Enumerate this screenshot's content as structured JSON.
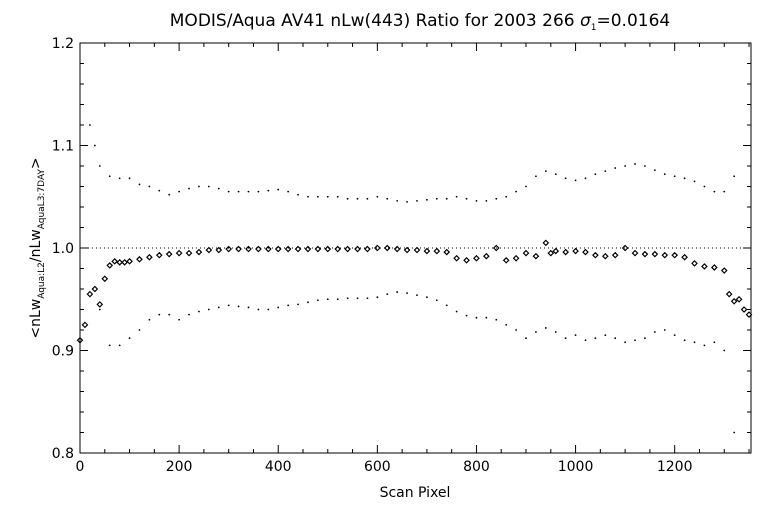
{
  "chart_data": {
    "type": "scatter",
    "title": "MODIS/Aqua AV41 nLw(443) Ratio for 2003 266 σ1=0.0164",
    "title_parts": {
      "main": "MODIS/Aqua AV41 nLw(443) Ratio for 2003 266 ",
      "sigma": "σ",
      "sigma_sub": "1",
      "value": "=0.0164"
    },
    "xlabel": "Scan Pixel",
    "ylabel_parts": {
      "open": "<nLw",
      "sub1": "Aqua:L2",
      "mid": "/nLw",
      "sub2": "AquaL3:7DAY",
      "close": ">"
    },
    "xlim": [
      0,
      1354
    ],
    "ylim": [
      0.8,
      1.2
    ],
    "xticks": [
      0,
      200,
      400,
      600,
      800,
      1000,
      1200
    ],
    "xtick_labels": [
      "0",
      "200",
      "400",
      "600",
      "800",
      "1000",
      "1200"
    ],
    "yticks": [
      0.8,
      0.9,
      1.0,
      1.1,
      1.2
    ],
    "ytick_labels": [
      "0.8",
      "0.9",
      "1.0",
      "1.1",
      "1.2"
    ],
    "reference_line": 1.0,
    "grid": false,
    "colors": {
      "marks": "#000000",
      "background": "#ffffff"
    },
    "series": [
      {
        "marker": "diamond",
        "x": [
          0,
          10,
          20,
          30,
          40,
          50,
          60,
          70,
          80,
          90,
          100,
          120,
          140,
          160,
          180,
          200,
          220,
          240,
          260,
          280,
          300,
          320,
          340,
          360,
          380,
          400,
          420,
          440,
          460,
          480,
          500,
          520,
          540,
          560,
          580,
          600,
          620,
          640,
          660,
          680,
          700,
          720,
          740,
          760,
          780,
          800,
          820,
          840,
          860,
          880,
          900,
          920,
          940,
          950,
          960,
          980,
          1000,
          1020,
          1040,
          1060,
          1080,
          1100,
          1120,
          1140,
          1160,
          1180,
          1200,
          1220,
          1240,
          1260,
          1280,
          1300,
          1310,
          1320,
          1330,
          1340,
          1350
        ],
        "y": [
          0.91,
          0.925,
          0.955,
          0.96,
          0.945,
          0.97,
          0.983,
          0.987,
          0.986,
          0.986,
          0.987,
          0.989,
          0.991,
          0.993,
          0.994,
          0.995,
          0.995,
          0.996,
          0.998,
          0.998,
          0.999,
          0.999,
          0.999,
          0.999,
          0.999,
          0.999,
          0.999,
          0.999,
          0.999,
          0.999,
          0.999,
          0.999,
          0.999,
          0.999,
          0.999,
          1.0,
          1.0,
          0.999,
          0.998,
          0.998,
          0.997,
          0.997,
          0.996,
          0.99,
          0.988,
          0.99,
          0.992,
          1.0,
          0.988,
          0.99,
          0.995,
          0.992,
          1.005,
          0.995,
          0.997,
          0.996,
          0.997,
          0.996,
          0.993,
          0.992,
          0.993,
          1.0,
          0.995,
          0.994,
          0.994,
          0.993,
          0.993,
          0.991,
          0.985,
          0.982,
          0.981,
          0.978,
          0.955,
          0.948,
          0.95,
          0.94,
          0.935
        ]
      },
      {
        "marker": "dot",
        "x": [
          20,
          30,
          40,
          60,
          80,
          100,
          120,
          140,
          160,
          180,
          200,
          220,
          240,
          260,
          280,
          300,
          320,
          340,
          360,
          380,
          400,
          420,
          440,
          460,
          480,
          500,
          520,
          540,
          560,
          580,
          600,
          620,
          640,
          660,
          680,
          700,
          720,
          740,
          760,
          780,
          800,
          820,
          840,
          860,
          880,
          900,
          920,
          940,
          960,
          980,
          1000,
          1020,
          1040,
          1060,
          1080,
          1100,
          1120,
          1140,
          1160,
          1180,
          1200,
          1220,
          1240,
          1260,
          1280,
          1300,
          1320
        ],
        "y": [
          1.12,
          1.1,
          1.08,
          1.07,
          1.068,
          1.068,
          1.062,
          1.06,
          1.056,
          1.052,
          1.055,
          1.058,
          1.06,
          1.06,
          1.058,
          1.055,
          1.055,
          1.055,
          1.055,
          1.056,
          1.057,
          1.055,
          1.052,
          1.05,
          1.05,
          1.05,
          1.05,
          1.048,
          1.048,
          1.048,
          1.05,
          1.048,
          1.046,
          1.045,
          1.046,
          1.047,
          1.048,
          1.048,
          1.05,
          1.048,
          1.046,
          1.046,
          1.048,
          1.05,
          1.055,
          1.06,
          1.07,
          1.075,
          1.072,
          1.068,
          1.066,
          1.068,
          1.072,
          1.075,
          1.078,
          1.08,
          1.082,
          1.08,
          1.076,
          1.072,
          1.07,
          1.068,
          1.065,
          1.06,
          1.055,
          1.055,
          1.07
        ]
      },
      {
        "marker": "dot",
        "x": [
          40,
          60,
          80,
          100,
          120,
          140,
          160,
          180,
          200,
          220,
          240,
          260,
          280,
          300,
          320,
          340,
          360,
          380,
          400,
          420,
          440,
          460,
          480,
          500,
          520,
          540,
          560,
          580,
          600,
          620,
          640,
          660,
          680,
          700,
          720,
          740,
          760,
          780,
          800,
          820,
          840,
          860,
          880,
          900,
          920,
          940,
          960,
          980,
          1000,
          1020,
          1040,
          1060,
          1080,
          1100,
          1120,
          1140,
          1160,
          1180,
          1200,
          1220,
          1240,
          1260,
          1280,
          1300,
          1320
        ],
        "y": [
          0.94,
          0.905,
          0.905,
          0.912,
          0.92,
          0.93,
          0.935,
          0.935,
          0.93,
          0.935,
          0.938,
          0.94,
          0.942,
          0.944,
          0.943,
          0.942,
          0.94,
          0.94,
          0.942,
          0.944,
          0.945,
          0.947,
          0.949,
          0.95,
          0.95,
          0.951,
          0.951,
          0.951,
          0.952,
          0.955,
          0.957,
          0.956,
          0.954,
          0.952,
          0.949,
          0.944,
          0.938,
          0.934,
          0.932,
          0.932,
          0.93,
          0.925,
          0.92,
          0.912,
          0.918,
          0.922,
          0.918,
          0.912,
          0.915,
          0.91,
          0.912,
          0.915,
          0.912,
          0.908,
          0.91,
          0.912,
          0.918,
          0.92,
          0.915,
          0.91,
          0.908,
          0.905,
          0.908,
          0.9,
          0.82
        ]
      }
    ]
  }
}
